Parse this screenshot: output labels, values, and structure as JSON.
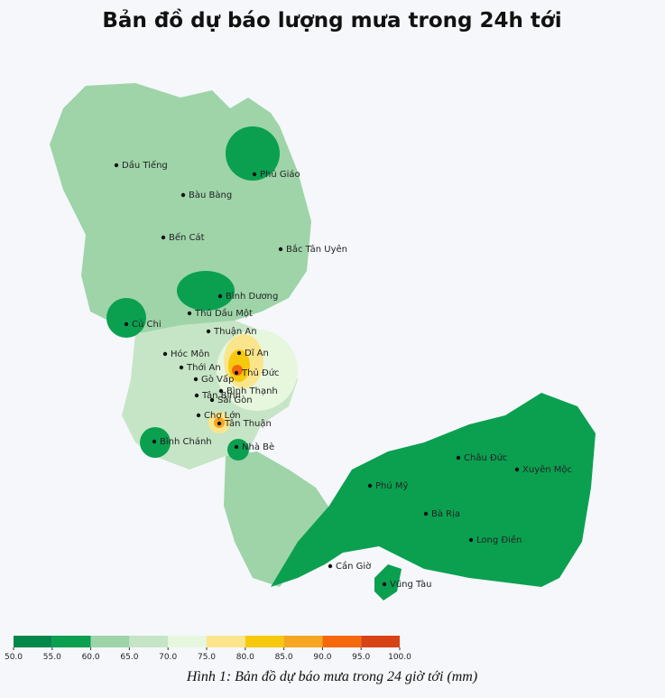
{
  "title": "Bản đồ dự báo lượng mưa trong 24h tới",
  "places": [
    "Dầu Tiếng",
    "Phú Giáo",
    "Bàu Bàng",
    "Bến Cát",
    "Bắc Tân Uyên",
    "Bình Dương",
    "Thủ Dầu Một",
    "Củ Chi",
    "Thuận An",
    "Hóc Môn",
    "Dĩ An",
    "Thới An",
    "Thủ Đức",
    "Gò Vấp",
    "Bình Thạnh",
    "Tân Bình",
    "Sài Gòn",
    "Chợ Lớn",
    "Tân Thuận",
    "Bình Chánh",
    "Nhà Bè",
    "Châu Đức",
    "Xuyên Mộc",
    "Phú Mỹ",
    "Bà Rịa",
    "Long Điền",
    "Cần Giờ",
    "Vũng Tàu"
  ],
  "legend": {
    "colors": [
      "#00874a",
      "#0aa050",
      "#9ed4a8",
      "#c6e5c6",
      "#e6f7de",
      "#fbe58c",
      "#f6c90e",
      "#f5a623",
      "#f5680c",
      "#d84315"
    ],
    "ticks": [
      {
        "value": 50,
        "label": "50.0"
      },
      {
        "value": 55,
        "label": "55.0"
      },
      {
        "value": 60,
        "label": "60.0"
      },
      {
        "value": 65,
        "label": "65.0"
      },
      {
        "value": 70,
        "label": "70.0"
      },
      {
        "value": 75,
        "label": "75.0"
      },
      {
        "value": 80,
        "label": "80.0"
      },
      {
        "value": 85,
        "label": "85.0"
      },
      {
        "value": 90,
        "label": "90.0"
      },
      {
        "value": 95,
        "label": "95.0"
      },
      {
        "value": 100,
        "label": "100.0"
      }
    ]
  },
  "caption": "Hình 1: Bản đồ dự báo mưa trong 24 giờ tới (mm)"
}
